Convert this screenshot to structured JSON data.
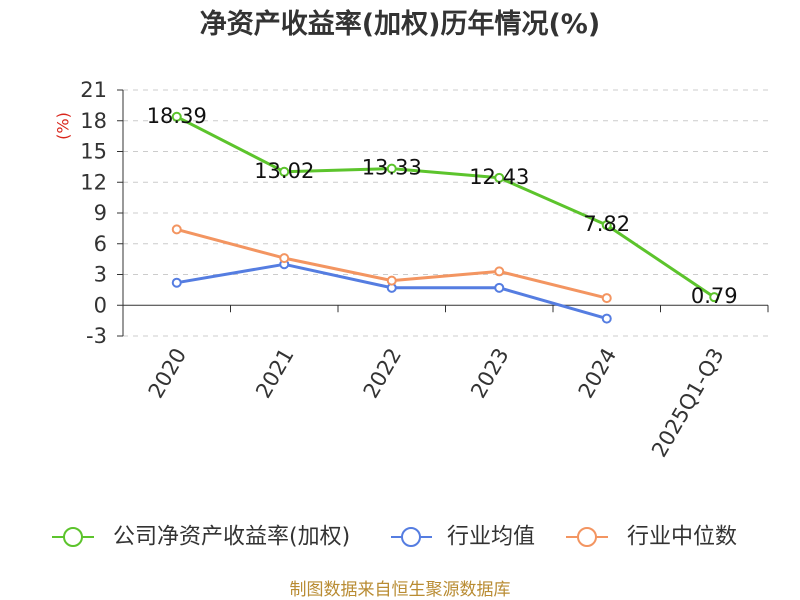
{
  "chart_data": {
    "type": "line",
    "title": "净资产收益率(加权)历年情况(%)",
    "ylabel": "(%)",
    "categories": [
      "2020",
      "2021",
      "2022",
      "2023",
      "2024",
      "2025Q1-Q3"
    ],
    "ylim": [
      -3,
      21
    ],
    "yticks": [
      21,
      18,
      15,
      12,
      9,
      6,
      3,
      0,
      -3
    ],
    "grid": true,
    "legend_position": "bottom",
    "series": [
      {
        "name": "公司净资产收益率(加权)",
        "color": "#5cc42c",
        "values": [
          18.39,
          13.02,
          13.33,
          12.43,
          7.82,
          0.79
        ],
        "show_labels": true
      },
      {
        "name": "行业均值",
        "color": "#557de1",
        "values": [
          2.2,
          4.0,
          1.7,
          1.7,
          -1.3,
          null
        ],
        "show_labels": false
      },
      {
        "name": "行业中位数",
        "color": "#f39561",
        "values": [
          7.4,
          4.6,
          2.4,
          3.3,
          0.7,
          null
        ],
        "show_labels": false
      }
    ]
  },
  "footer": "制图数据来自恒生聚源数据库",
  "colors": {
    "title": "#333333",
    "ylabel": "#d9261c",
    "footer": "#b98c33",
    "axis": "#333333",
    "grid": "#cccccc"
  }
}
